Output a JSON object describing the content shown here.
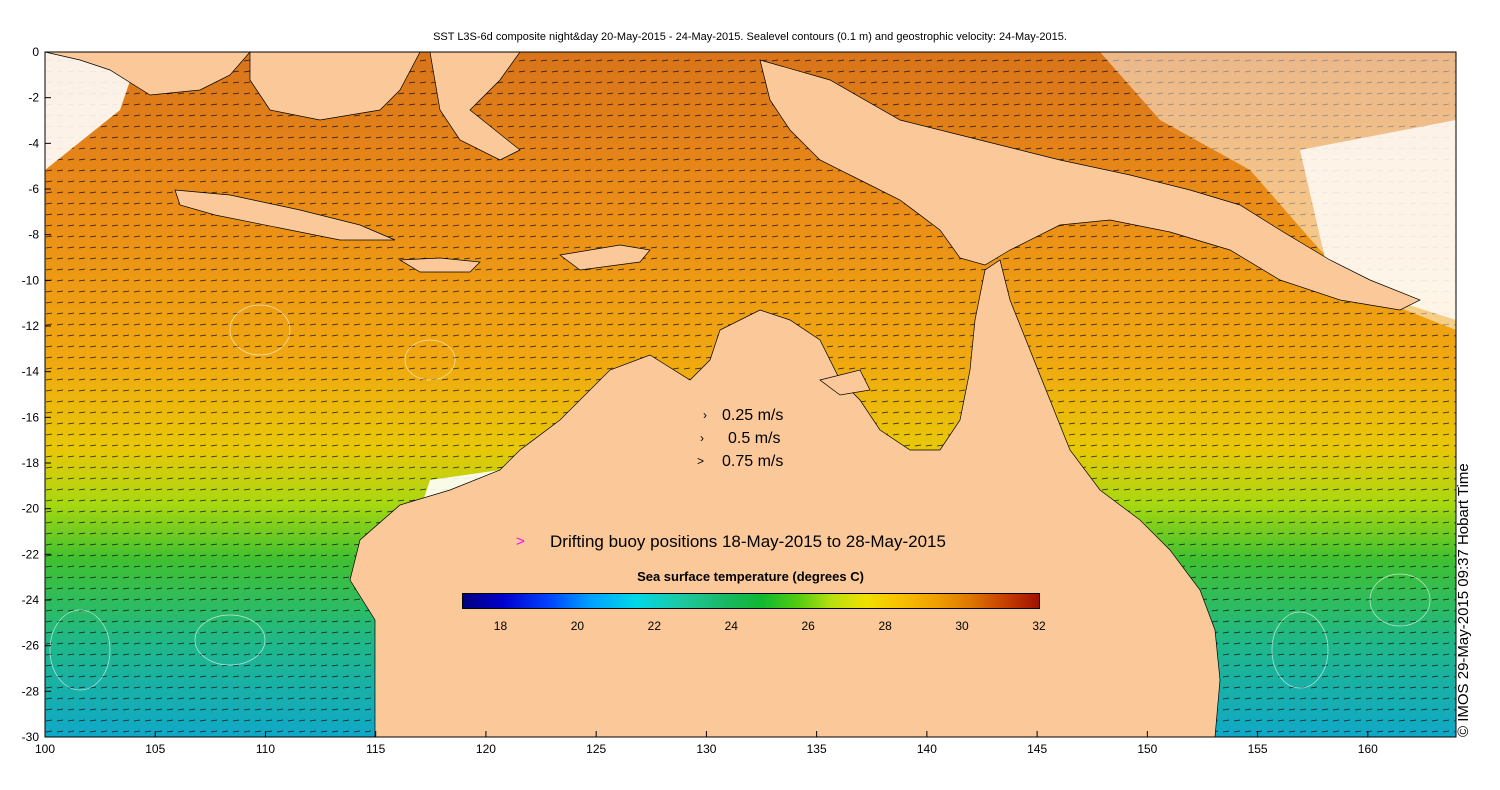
{
  "title": "SST L3S-6d composite night&day 20-May-2015 - 24-May-2015. Sealevel contours (0.1 m) and geostrophic velocity: 24-May-2015.",
  "credit": "© IMOS 29-May-2015 09:37 Hobart Time",
  "map": {
    "lon_range": [
      100,
      164
    ],
    "lat_range": [
      -30,
      0
    ],
    "x_ticks": [
      "100",
      "105",
      "110",
      "115",
      "120",
      "125",
      "130",
      "135",
      "140",
      "145",
      "150",
      "155",
      "160"
    ],
    "y_ticks": [
      "0",
      "-2",
      "-4",
      "-6",
      "-8",
      "-10",
      "-12",
      "-14",
      "-16",
      "-18",
      "-20",
      "-22",
      "-24",
      "-26",
      "-28",
      "-30"
    ],
    "land_color": "#fbc999",
    "ocean_warm_color": "#e8901c",
    "ocean_cool_color": "#30b840"
  },
  "velocity_legend": {
    "items": [
      "0.25 m/s",
      "0.5 m/s",
      "0.75 m/s"
    ]
  },
  "buoy_legend": {
    "label": "Drifting buoy positions 18-May-2015 to 28-May-2015",
    "marker_color": "#ff00ff"
  },
  "colorbar": {
    "title": "Sea surface temperature (degrees C)",
    "ticks": [
      "18",
      "20",
      "22",
      "24",
      "26",
      "28",
      "30",
      "32"
    ],
    "min": 17,
    "max": 32
  }
}
